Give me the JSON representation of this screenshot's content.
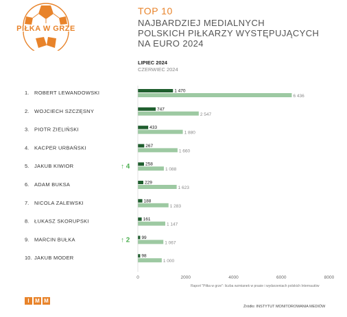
{
  "logo": {
    "text": "PIŁKA W GRZE"
  },
  "header": {
    "top": "TOP 10",
    "title_lines": [
      "NAJBARDZIEJ MEDIALNYCH",
      "POLSKICH PIŁKARZY WYSTĘPUJĄCYCH",
      "NA EURO 2024"
    ]
  },
  "colors": {
    "accent": "#e8832a",
    "current": "#1f5e2e",
    "previous": "#9dc9a2",
    "arrow": "#4caf50"
  },
  "chart_data": {
    "type": "bar",
    "orientation": "horizontal",
    "categories": [
      "ROBERT LEWANDOWSKI",
      "WOJCIECH SZCZĘSNY",
      "PIOTR ZIELIŃSKI",
      "KACPER URBAŃSKI",
      "JAKUB KIWIOR",
      "ADAM BUKSA",
      "NICOLA ZALEWSKI",
      "ŁUKASZ SKORUPSKI",
      "MARCIN BUŁKA",
      "JAKUB MODER"
    ],
    "ranks": [
      "1.",
      "2.",
      "3.",
      "4.",
      "5.",
      "6.",
      "7.",
      "8.",
      "9.",
      "10."
    ],
    "series": [
      {
        "name": "LIPIEC 2024",
        "values": [
          1470,
          747,
          433,
          267,
          258,
          229,
          188,
          161,
          99,
          98
        ],
        "labels": [
          "1 470",
          "747",
          "433",
          "267",
          "258",
          "229",
          "188",
          "161",
          "99",
          "98"
        ]
      },
      {
        "name": "CZERWIEC 2024",
        "values": [
          6436,
          2547,
          1880,
          1660,
          1088,
          1623,
          1283,
          1147,
          1067,
          1000
        ],
        "labels": [
          "6 436",
          "2 547",
          "1 880",
          "1 660",
          "1 088",
          "1 623",
          "1 283",
          "1 147",
          "1 067",
          "1 000"
        ]
      }
    ],
    "changes": [
      "",
      "",
      "",
      "",
      "↑ 4",
      "",
      "",
      "",
      "↑ 2",
      ""
    ],
    "xticks": [
      0,
      2000,
      4000,
      6000,
      8000
    ],
    "xlim": [
      0,
      8000
    ],
    "legend_position": "top"
  },
  "footer": {
    "note": "Raport \"Piłka w grze\": liczba wzmianek w prasie i wydarzeniach polskich Internautów",
    "imm_letters": [
      "I",
      "M",
      "M"
    ],
    "source": "Źródło: INSTYTUT MONITOROWANIA MEDIÓW"
  }
}
